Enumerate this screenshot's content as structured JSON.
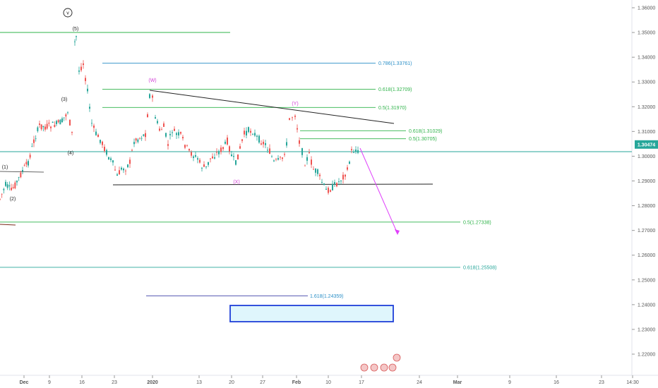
{
  "chart_data": {
    "type": "candlestick",
    "y_axis": {
      "ticks": [
        "1.36000",
        "1.35000",
        "1.34000",
        "1.33000",
        "1.32000",
        "1.31000",
        "1.30000",
        "1.29000",
        "1.28000",
        "1.27000",
        "1.26000",
        "1.25000",
        "1.24000",
        "1.23000",
        "1.22000"
      ],
      "range": [
        1.219,
        1.364
      ],
      "price_badge": "1.30474",
      "current_price": 1.30474
    },
    "x_axis": {
      "ticks": [
        "Dec",
        "9",
        "16",
        "23",
        "2020",
        "13",
        "20",
        "27",
        "Feb",
        "10",
        "17",
        "24",
        "Mar",
        "9",
        "16",
        "23",
        "14:30"
      ]
    },
    "levels": [
      {
        "label": "0.786(1.33761)",
        "price": 1.33761,
        "color": "#2a8fc7"
      },
      {
        "label": "0.618(1.32709)",
        "price": 1.32709,
        "color": "#2fb34a"
      },
      {
        "label": "0.5(1.31970)",
        "price": 1.3197,
        "color": "#2fb34a"
      },
      {
        "label": "0.618(1.31029)",
        "price": 1.31029,
        "color": "#2fb34a"
      },
      {
        "label": "0.5(1.30705)",
        "price": 1.30705,
        "color": "#2fb34a"
      },
      {
        "label": "0.5(1.27338)",
        "price": 1.27338,
        "color": "#2fb34a"
      },
      {
        "label": "0.618(1.25508)",
        "price": 1.25508,
        "color": "#26a69a"
      },
      {
        "label": "1.618(1.24359)",
        "price": 1.24359,
        "color": "#2a8fc7"
      }
    ],
    "wave_labels": [
      "(1)",
      "(2)",
      "(3)",
      "(4)",
      "(5)",
      "v"
    ],
    "corrective_labels": [
      "(W)",
      "(X)",
      "(Y)"
    ],
    "colors": {
      "up": "#26a69a",
      "down": "#ef5350",
      "target_arrow": "#e040fb",
      "box": "#1e3fd9",
      "box_fill": "#dff6fc"
    }
  }
}
